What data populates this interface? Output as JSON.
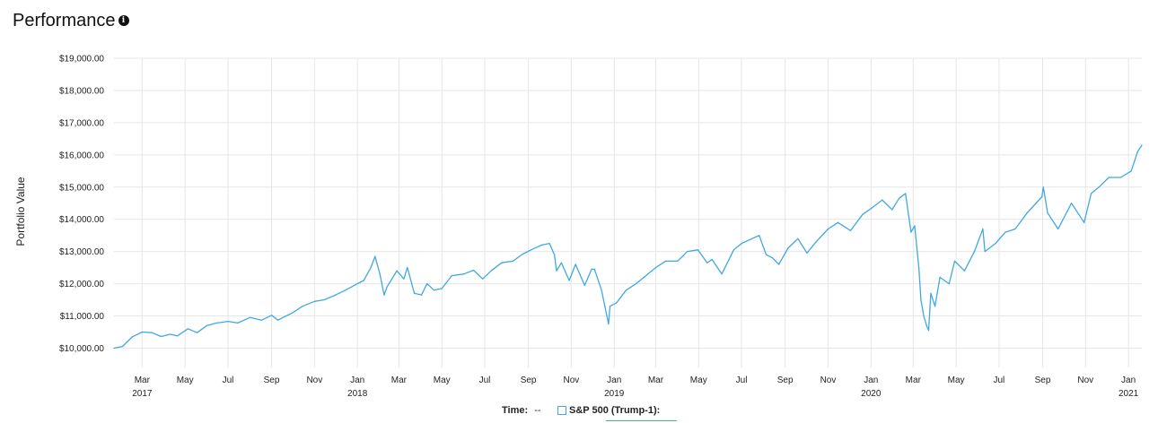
{
  "header": {
    "title": "Performance",
    "info_icon": "info-icon"
  },
  "legend": {
    "time_label": "Time:",
    "time_value": "--",
    "series_label": "S&P 500 (Trump-1):",
    "series_color": "#41a8e0"
  },
  "chart_data": {
    "type": "line",
    "title": "",
    "ylabel": "Portfolio Value",
    "xlabel": "",
    "ylim": [
      9400,
      19000
    ],
    "xlim": [
      "2017-01-20",
      "2021-01-20"
    ],
    "y_ticks": [
      {
        "value": 10000,
        "label": "$10,000.00"
      },
      {
        "value": 11000,
        "label": "$11,000.00"
      },
      {
        "value": 12000,
        "label": "$12,000.00"
      },
      {
        "value": 13000,
        "label": "$13,000.00"
      },
      {
        "value": 14000,
        "label": "$14,000.00"
      },
      {
        "value": 15000,
        "label": "$15,000.00"
      },
      {
        "value": 16000,
        "label": "$16,000.00"
      },
      {
        "value": 17000,
        "label": "$17,000.00"
      },
      {
        "value": 18000,
        "label": "$18,000.00"
      },
      {
        "value": 19000,
        "label": "$19,000.00"
      }
    ],
    "x_ticks": [
      {
        "date": "2017-03-01",
        "label": "Mar",
        "year": "2017"
      },
      {
        "date": "2017-05-01",
        "label": "May",
        "year": ""
      },
      {
        "date": "2017-07-01",
        "label": "Jul",
        "year": ""
      },
      {
        "date": "2017-09-01",
        "label": "Sep",
        "year": ""
      },
      {
        "date": "2017-11-01",
        "label": "Nov",
        "year": ""
      },
      {
        "date": "2018-01-01",
        "label": "Jan",
        "year": "2018"
      },
      {
        "date": "2018-03-01",
        "label": "Mar",
        "year": ""
      },
      {
        "date": "2018-05-01",
        "label": "May",
        "year": ""
      },
      {
        "date": "2018-07-01",
        "label": "Jul",
        "year": ""
      },
      {
        "date": "2018-09-01",
        "label": "Sep",
        "year": ""
      },
      {
        "date": "2018-11-01",
        "label": "Nov",
        "year": ""
      },
      {
        "date": "2019-01-01",
        "label": "Jan",
        "year": "2019"
      },
      {
        "date": "2019-03-01",
        "label": "Mar",
        "year": ""
      },
      {
        "date": "2019-05-01",
        "label": "May",
        "year": ""
      },
      {
        "date": "2019-07-01",
        "label": "Jul",
        "year": ""
      },
      {
        "date": "2019-09-01",
        "label": "Sep",
        "year": ""
      },
      {
        "date": "2019-11-01",
        "label": "Nov",
        "year": ""
      },
      {
        "date": "2020-01-01",
        "label": "Jan",
        "year": "2020"
      },
      {
        "date": "2020-03-01",
        "label": "Mar",
        "year": ""
      },
      {
        "date": "2020-05-01",
        "label": "May",
        "year": ""
      },
      {
        "date": "2020-07-01",
        "label": "Jul",
        "year": ""
      },
      {
        "date": "2020-09-01",
        "label": "Sep",
        "year": ""
      },
      {
        "date": "2020-11-01",
        "label": "Nov",
        "year": ""
      },
      {
        "date": "2021-01-01",
        "label": "Jan",
        "year": "2021"
      }
    ],
    "grid": true,
    "series": [
      {
        "color": "#41a8e0",
        "points": [
          [
            "2017-01-20",
            10000
          ],
          [
            "2017-02-01",
            10050
          ],
          [
            "2017-02-15",
            10350
          ],
          [
            "2017-03-01",
            10500
          ],
          [
            "2017-03-15",
            10480
          ],
          [
            "2017-03-28",
            10360
          ],
          [
            "2017-04-10",
            10430
          ],
          [
            "2017-04-20",
            10380
          ],
          [
            "2017-05-05",
            10600
          ],
          [
            "2017-05-18",
            10480
          ],
          [
            "2017-06-01",
            10700
          ],
          [
            "2017-06-15",
            10780
          ],
          [
            "2017-07-01",
            10830
          ],
          [
            "2017-07-15",
            10780
          ],
          [
            "2017-08-01",
            10950
          ],
          [
            "2017-08-18",
            10870
          ],
          [
            "2017-09-01",
            11020
          ],
          [
            "2017-09-10",
            10870
          ],
          [
            "2017-09-20",
            10980
          ],
          [
            "2017-10-01",
            11100
          ],
          [
            "2017-10-15",
            11300
          ],
          [
            "2017-11-01",
            11450
          ],
          [
            "2017-11-15",
            11500
          ],
          [
            "2017-12-01",
            11650
          ],
          [
            "2017-12-15",
            11800
          ],
          [
            "2018-01-01",
            12000
          ],
          [
            "2018-01-10",
            12100
          ],
          [
            "2018-01-20",
            12500
          ],
          [
            "2018-01-26",
            12850
          ],
          [
            "2018-02-02",
            12300
          ],
          [
            "2018-02-08",
            11650
          ],
          [
            "2018-02-12",
            11900
          ],
          [
            "2018-02-26",
            12400
          ],
          [
            "2018-03-08",
            12150
          ],
          [
            "2018-03-13",
            12500
          ],
          [
            "2018-03-23",
            11700
          ],
          [
            "2018-04-02",
            11650
          ],
          [
            "2018-04-10",
            12000
          ],
          [
            "2018-04-20",
            11800
          ],
          [
            "2018-05-01",
            11850
          ],
          [
            "2018-05-15",
            12250
          ],
          [
            "2018-06-01",
            12300
          ],
          [
            "2018-06-15",
            12420
          ],
          [
            "2018-06-28",
            12150
          ],
          [
            "2018-07-10",
            12400
          ],
          [
            "2018-07-25",
            12650
          ],
          [
            "2018-08-10",
            12700
          ],
          [
            "2018-08-24",
            12920
          ],
          [
            "2018-09-05",
            13050
          ],
          [
            "2018-09-20",
            13200
          ],
          [
            "2018-10-01",
            13250
          ],
          [
            "2018-10-08",
            12900
          ],
          [
            "2018-10-11",
            12400
          ],
          [
            "2018-10-18",
            12650
          ],
          [
            "2018-10-29",
            12100
          ],
          [
            "2018-11-07",
            12600
          ],
          [
            "2018-11-20",
            11950
          ],
          [
            "2018-11-30",
            12450
          ],
          [
            "2018-12-04",
            12450
          ],
          [
            "2018-12-14",
            11800
          ],
          [
            "2018-12-24",
            10750
          ],
          [
            "2018-12-26",
            11300
          ],
          [
            "2019-01-04",
            11400
          ],
          [
            "2019-01-18",
            11800
          ],
          [
            "2019-02-01",
            12000
          ],
          [
            "2019-02-15",
            12250
          ],
          [
            "2019-03-01",
            12500
          ],
          [
            "2019-03-15",
            12700
          ],
          [
            "2019-04-01",
            12700
          ],
          [
            "2019-04-15",
            13000
          ],
          [
            "2019-04-30",
            13050
          ],
          [
            "2019-05-13",
            12650
          ],
          [
            "2019-05-20",
            12750
          ],
          [
            "2019-06-03",
            12300
          ],
          [
            "2019-06-20",
            13050
          ],
          [
            "2019-07-01",
            13250
          ],
          [
            "2019-07-26",
            13500
          ],
          [
            "2019-08-05",
            12900
          ],
          [
            "2019-08-14",
            12800
          ],
          [
            "2019-08-23",
            12600
          ],
          [
            "2019-09-05",
            13100
          ],
          [
            "2019-09-19",
            13400
          ],
          [
            "2019-10-02",
            12950
          ],
          [
            "2019-10-15",
            13300
          ],
          [
            "2019-11-01",
            13700
          ],
          [
            "2019-11-15",
            13900
          ],
          [
            "2019-12-03",
            13650
          ],
          [
            "2019-12-20",
            14150
          ],
          [
            "2020-01-02",
            14350
          ],
          [
            "2020-01-17",
            14600
          ],
          [
            "2020-01-31",
            14300
          ],
          [
            "2020-02-10",
            14650
          ],
          [
            "2020-02-19",
            14800
          ],
          [
            "2020-02-27",
            13600
          ],
          [
            "2020-03-03",
            13800
          ],
          [
            "2020-03-09",
            12500
          ],
          [
            "2020-03-12",
            11500
          ],
          [
            "2020-03-16",
            11000
          ],
          [
            "2020-03-20",
            10700
          ],
          [
            "2020-03-23",
            10550
          ],
          [
            "2020-03-26",
            11700
          ],
          [
            "2020-04-01",
            11300
          ],
          [
            "2020-04-08",
            12200
          ],
          [
            "2020-04-21",
            12000
          ],
          [
            "2020-04-29",
            12700
          ],
          [
            "2020-05-13",
            12400
          ],
          [
            "2020-05-27",
            13000
          ],
          [
            "2020-06-08",
            13700
          ],
          [
            "2020-06-11",
            13000
          ],
          [
            "2020-06-26",
            13250
          ],
          [
            "2020-07-10",
            13600
          ],
          [
            "2020-07-24",
            13700
          ],
          [
            "2020-08-10",
            14200
          ],
          [
            "2020-08-31",
            14700
          ],
          [
            "2020-09-02",
            15000
          ],
          [
            "2020-09-08",
            14200
          ],
          [
            "2020-09-23",
            13700
          ],
          [
            "2020-10-12",
            14500
          ],
          [
            "2020-10-30",
            13900
          ],
          [
            "2020-11-09",
            14800
          ],
          [
            "2020-11-20",
            15000
          ],
          [
            "2020-12-04",
            15300
          ],
          [
            "2020-12-21",
            15300
          ],
          [
            "2021-01-05",
            15500
          ],
          [
            "2021-01-14",
            16100
          ],
          [
            "2021-01-20",
            16300
          ]
        ]
      }
    ]
  }
}
